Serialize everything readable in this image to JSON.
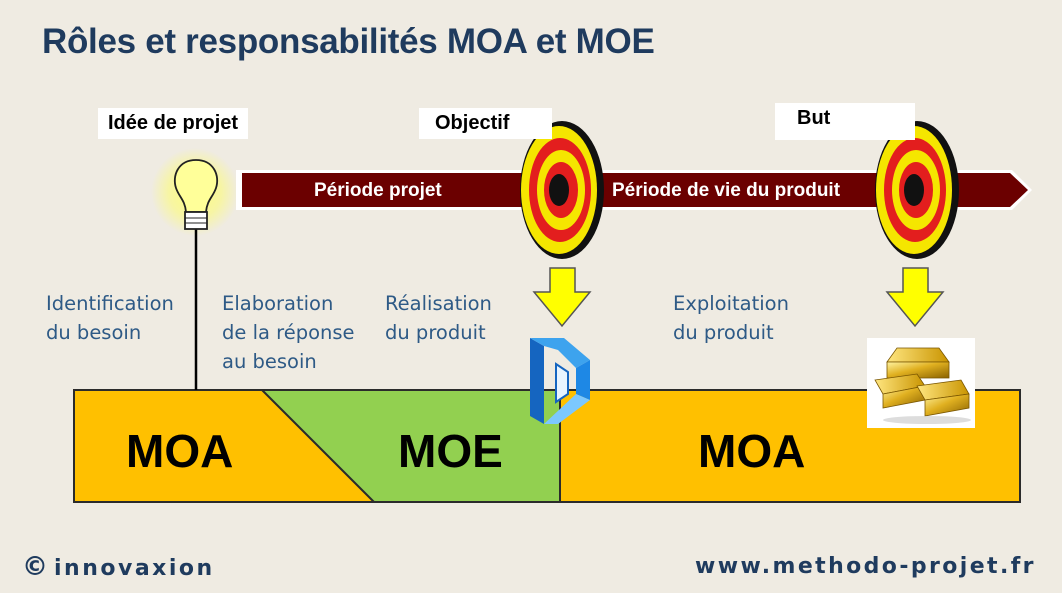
{
  "title": "Rôles et responsabilités MOA et MOE",
  "milestones": {
    "idea": "Idée de projet",
    "objective": "Objectif",
    "goal": "But"
  },
  "arrows": {
    "project_period": "Période projet",
    "product_life": "Période de vie du produit"
  },
  "phases": {
    "identification": [
      "Identification",
      "du besoin"
    ],
    "elaboration": [
      "Elaboration",
      "de la réponse",
      "au besoin"
    ],
    "realisation": [
      "Réalisation",
      "du produit"
    ],
    "exploitation": [
      "Exploitation",
      "du produit"
    ]
  },
  "roles": {
    "moa_left": "MOA",
    "moe": "MOE",
    "moa_right": "MOA"
  },
  "footer": {
    "copyright_symbol": "©",
    "brand": "innovaxion",
    "website": "www.methodo-projet.fr"
  },
  "colors": {
    "title": "#1f3b5e",
    "moa": "#ffc000",
    "moe": "#92d050",
    "arrow": "#6b0000",
    "phase_text": "#2e5a86",
    "target_red": "#e31e1e",
    "target_yellow": "#f5e600",
    "down_arrow": "#ffff00"
  },
  "icons": [
    "lightbulb-icon",
    "target-icon",
    "down-arrow-icon",
    "impossible-shape-icon",
    "gold-bars-icon"
  ]
}
